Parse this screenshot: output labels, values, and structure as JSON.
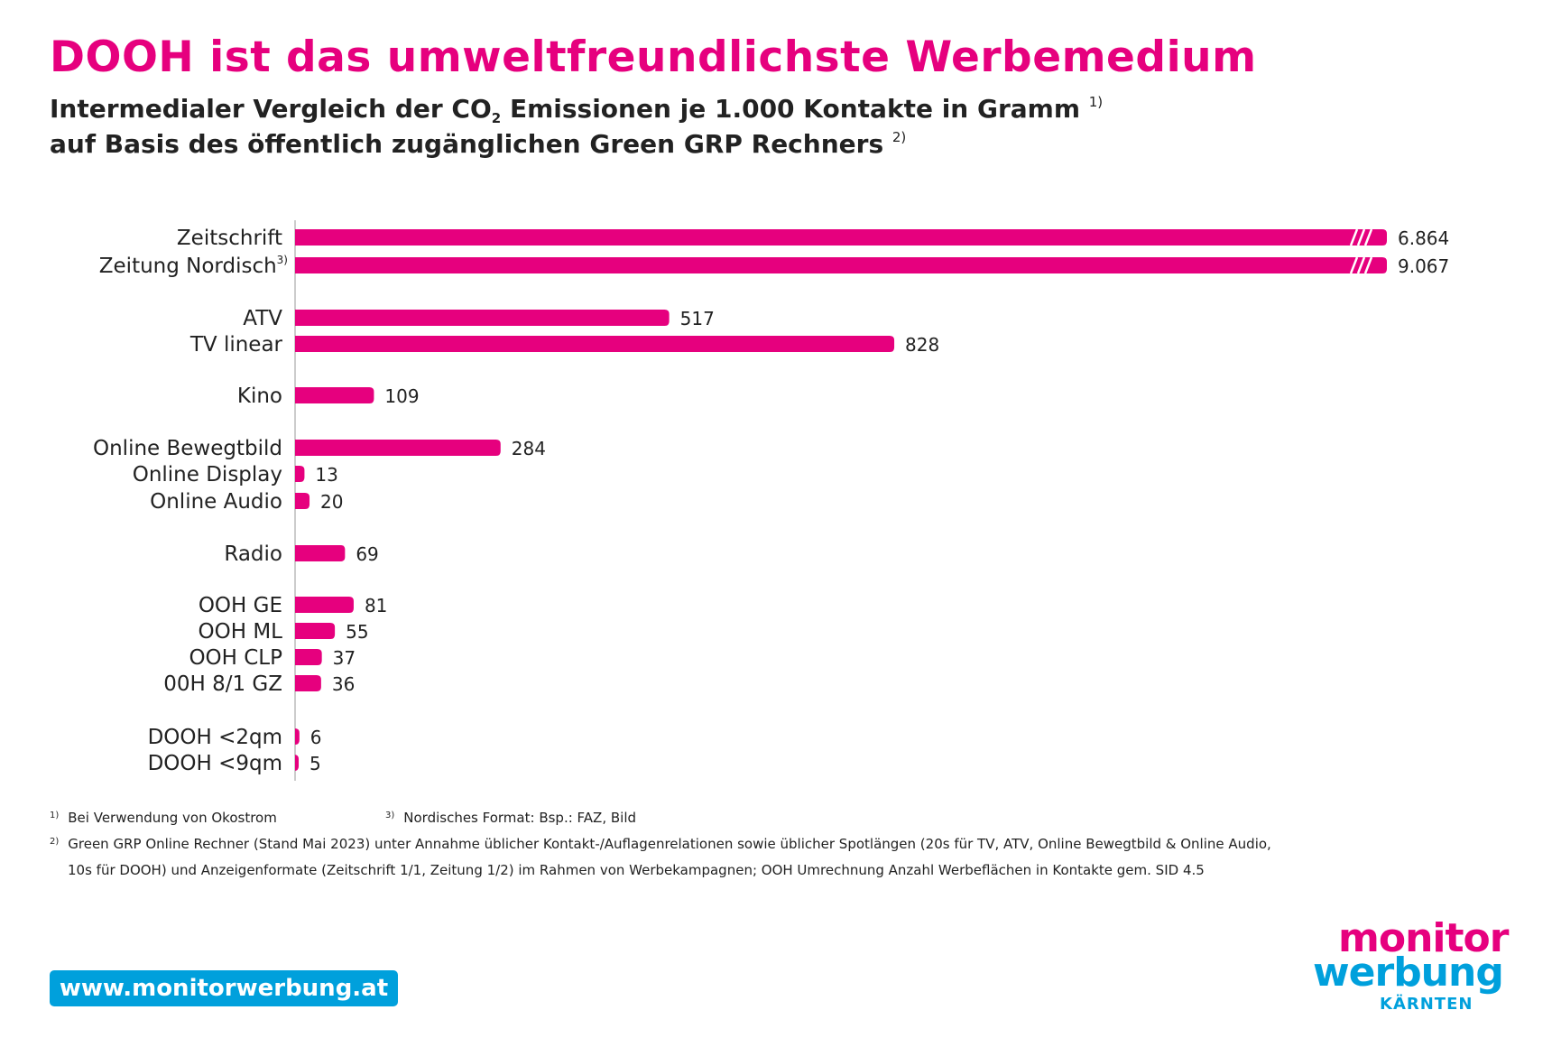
{
  "title": "DOOH ist das umweltfreundlichste Werbemedium",
  "subtitle": {
    "line1_a": "Intermedialer Vergleich der CO",
    "line1_sub": "2",
    "line1_b": " Emissionen je 1.000 Kontakte in Gramm ",
    "line1_note": "1)",
    "line2": "auf Basis des öffentlich zugänglichen Green GRP Rechners ",
    "line2_note": "2)"
  },
  "chart_data": {
    "type": "bar",
    "orientation": "horizontal",
    "title": "",
    "xlabel": "",
    "ylabel": "",
    "axis_break_bars": [
      "Zeitschrift",
      "Zeitung Nordisch"
    ],
    "bar_color": "#e6007e",
    "categories": [
      "Zeitschrift",
      "Zeitung Nordisch",
      "ATV",
      "TV linear",
      "Kino",
      "Online Bewegtbild",
      "Online Display",
      "Online Audio",
      "Radio",
      "OOH GE",
      "OOH ML",
      "OOH CLP",
      "00H 8/1 GZ",
      "DOOH <2qm",
      "DOOH <9qm"
    ],
    "category_notes": [
      "",
      "3)",
      "",
      "",
      "",
      "",
      "",
      "",
      "",
      "",
      "",
      "",
      "",
      "",
      ""
    ],
    "groups": [
      1,
      1,
      2,
      2,
      3,
      4,
      4,
      4,
      5,
      6,
      6,
      6,
      6,
      7,
      7
    ],
    "values": [
      6864,
      9067,
      517,
      828,
      109,
      284,
      13,
      20,
      69,
      81,
      55,
      37,
      36,
      6,
      5
    ],
    "value_labels": [
      "6.864",
      "9.067",
      "517",
      "828",
      "109",
      "284",
      "13",
      "20",
      "69",
      "81",
      "55",
      "37",
      "36",
      "6",
      "5"
    ]
  },
  "footnotes": {
    "n1_mark": "1)",
    "n1": "Bei Verwendung von Okostrom",
    "n3_mark": "3)",
    "n3": "Nordisches Format: Bsp.: FAZ, Bild",
    "n2_mark": "2)",
    "n2_line1": "Green GRP Online Rechner (Stand Mai 2023) unter Annahme üblicher Kontakt-/Auflagenrelationen sowie üblicher Spotlängen (20s für TV, ATV, Online Bewegtbild & Online Audio,",
    "n2_line2": "10s für DOOH) und Anzeigenformate (Zeitschrift 1/1, Zeitung 1/2) im Rahmen von Werbekampagnen; OOH Umrechnung Anzahl Werbeflächen in Kontakte gem. SID 4.5"
  },
  "url": "www.monitorwerbung.at",
  "logo": {
    "line1": "monitor",
    "line2": "werbung",
    "line3": "KÄRNTEN"
  },
  "colors": {
    "accent": "#e6007e",
    "brand_blue": "#00a0dc"
  }
}
